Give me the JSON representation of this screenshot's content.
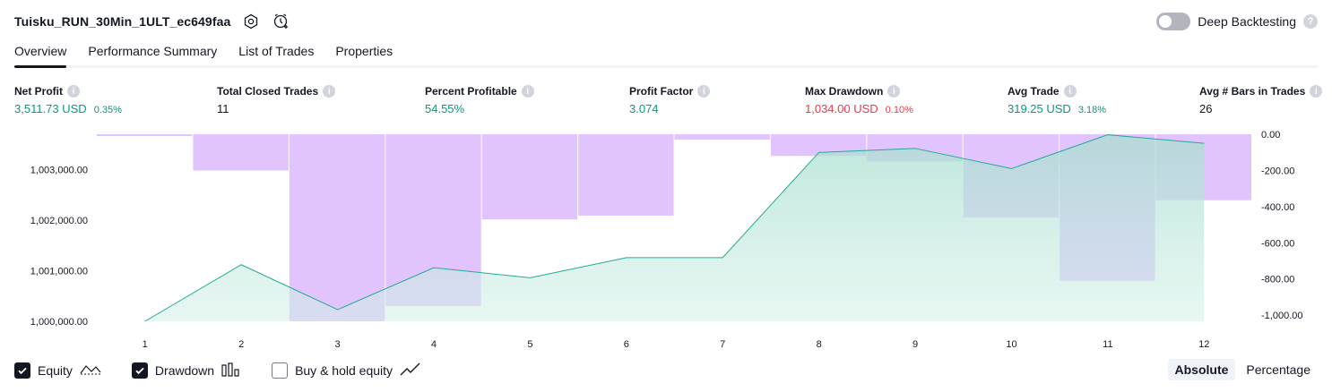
{
  "header": {
    "strategy_name": "Tuisku_RUN_30Min_1ULT_ec649faa",
    "settings_icon": "settings-gear-icon",
    "alert_icon": "add-alert-clock-icon",
    "deep_backtesting_label": "Deep Backtesting",
    "deep_backtesting_enabled": false
  },
  "tabs": [
    {
      "label": "Overview",
      "active": true
    },
    {
      "label": "Performance Summary",
      "active": false
    },
    {
      "label": "List of Trades",
      "active": false
    },
    {
      "label": "Properties",
      "active": false
    }
  ],
  "metrics": [
    {
      "label": "Net Profit",
      "value": "3,511.73 USD",
      "pct": "0.35%",
      "tone": "green"
    },
    {
      "label": "Total Closed Trades",
      "value": "11",
      "pct": "",
      "tone": "dark"
    },
    {
      "label": "Percent Profitable",
      "value": "54.55%",
      "pct": "",
      "tone": "green"
    },
    {
      "label": "Profit Factor",
      "value": "3.074",
      "pct": "",
      "tone": "green"
    },
    {
      "label": "Max Drawdown",
      "value": "1,034.00 USD",
      "pct": "0.10%",
      "tone": "red"
    },
    {
      "label": "Avg Trade",
      "value": "319.25 USD",
      "pct": "3.18%",
      "tone": "green"
    },
    {
      "label": "Avg # Bars in Trades",
      "value": "26",
      "pct": "",
      "tone": "dark"
    }
  ],
  "chart_data": {
    "type": "line",
    "x": [
      1,
      2,
      3,
      4,
      5,
      6,
      7,
      8,
      9,
      10,
      11,
      12
    ],
    "series": [
      {
        "name": "Equity",
        "axis": "left",
        "kind": "area-line",
        "values": [
          1000000,
          1001120,
          1000230,
          1001060,
          1000860,
          1001260,
          1001260,
          1003340,
          1003420,
          1003020,
          1003690,
          1003520
        ]
      },
      {
        "name": "Drawdown",
        "axis": "right",
        "kind": "bar",
        "values": [
          -10,
          -200,
          -1034,
          -950,
          -470,
          -450,
          -30,
          -120,
          -150,
          -460,
          -810,
          -365
        ]
      }
    ],
    "left_axis": {
      "ylim": [
        1000000,
        1003700
      ],
      "ticks": [
        "1,000,000.00",
        "1,001,000.00",
        "1,002,000.00",
        "1,003,000.00"
      ],
      "tick_values": [
        1000000,
        1001000,
        1002000,
        1003000
      ]
    },
    "right_axis": {
      "ylim": [
        -1034,
        0
      ],
      "ticks": [
        "0.00",
        "-200.00",
        "-400.00",
        "-600.00",
        "-800.00",
        "-1,000.00"
      ],
      "tick_values": [
        0,
        -200,
        -400,
        -600,
        -800,
        -1000
      ]
    },
    "colors": {
      "equity_line": "#22ab94",
      "equity_fill": "#d4f0e8",
      "drawdown_bar": "#e1c3fd"
    }
  },
  "legend": [
    {
      "label": "Equity",
      "checked": true,
      "icon": "equity-line-icon"
    },
    {
      "label": "Drawdown",
      "checked": true,
      "icon": "drawdown-bars-icon"
    },
    {
      "label": "Buy & hold equity",
      "checked": false,
      "icon": "buy-hold-line-icon"
    }
  ],
  "mode": {
    "absolute_label": "Absolute",
    "percentage_label": "Percentage",
    "selected": "Absolute"
  }
}
